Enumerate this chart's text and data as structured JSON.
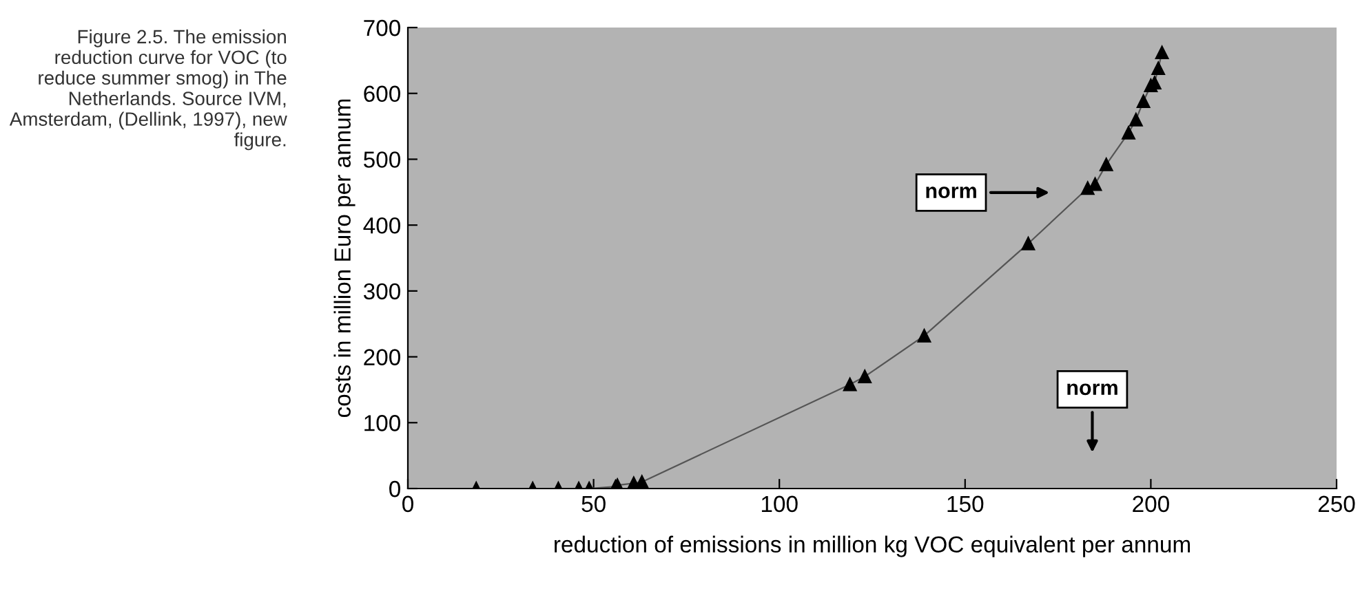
{
  "chart_data": {
    "type": "line",
    "xlabel": "reduction of emissions in million kg VOC equivalent per annum",
    "ylabel": "costs in million Euro per annum",
    "x": [
      18.4,
      33.6,
      40.5,
      46,
      48.8,
      55.9,
      56.4,
      60.8,
      63,
      119,
      123,
      139,
      167,
      183,
      185,
      188,
      194,
      196,
      198,
      200,
      201,
      202,
      203
    ],
    "series": [
      {
        "color": "#000000",
        "values": [
          0,
          0,
          0,
          0,
          0,
          3,
          5,
          8,
          10,
          158,
          170,
          232,
          372,
          456,
          462,
          492,
          540,
          560,
          588,
          612,
          616,
          638,
          662
        ]
      }
    ],
    "marker": "triangle",
    "line_style": "solid",
    "xlim": [
      0,
      250
    ],
    "xticks": [
      0,
      50,
      100,
      150,
      200,
      250
    ],
    "ylim": [
      0,
      700
    ],
    "yticks": [
      0,
      100,
      200,
      300,
      400,
      500,
      600,
      700
    ],
    "annotations": [
      "Figure 2.5. The emission reduction curve for VOC (to reduce summer smog) in The Netherlands. Source IVM, Amsterdam, (Dellink, 1997), new figure.",
      "norm",
      "norm"
    ]
  }
}
